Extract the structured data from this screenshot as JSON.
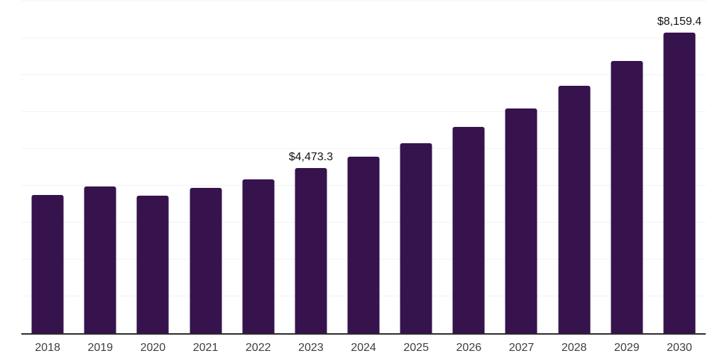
{
  "chart_data": {
    "type": "bar",
    "title": "",
    "xlabel": "",
    "ylabel": "",
    "categories": [
      "2018",
      "2019",
      "2020",
      "2021",
      "2022",
      "2023",
      "2024",
      "2025",
      "2026",
      "2027",
      "2028",
      "2029",
      "2030"
    ],
    "values": [
      3755,
      3980,
      3730,
      3935,
      4175,
      4473.3,
      4785,
      5150,
      5590,
      6090,
      6705,
      7390,
      8159.4
    ],
    "data_labels": [
      "",
      "",
      "",
      "",
      "",
      "$4,473.3",
      "",
      "",
      "",
      "",
      "",
      "",
      "$8,159.4"
    ],
    "ylim": [
      0,
      9000
    ],
    "gridline_step": 1000,
    "grid": "horizontal-only",
    "legend": "none",
    "y_axis_labels_shown": false
  },
  "colors": {
    "bar": "#36134D",
    "axis_line": "#2B2B2B",
    "gridline": "#F2F2F2",
    "tick_label": "#3D3D3D",
    "data_label": "#111111",
    "background": "#FFFFFF"
  }
}
